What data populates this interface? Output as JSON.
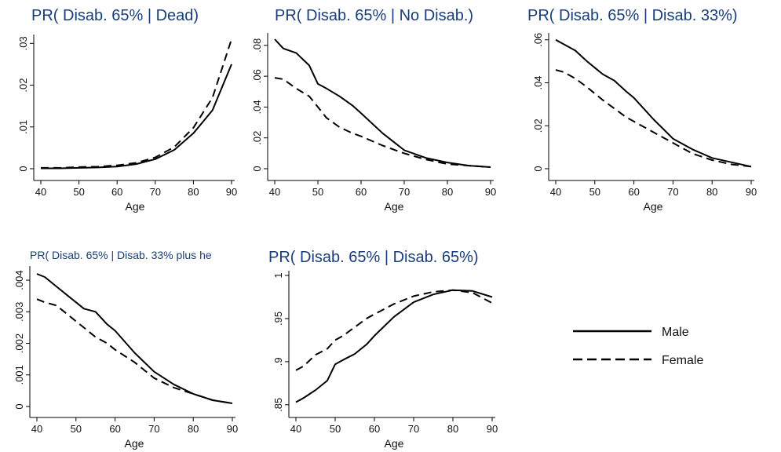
{
  "legend": {
    "entries": [
      {
        "label": "Male",
        "style": "solid"
      },
      {
        "label": "Female",
        "style": "dashed"
      }
    ],
    "placement": "bottom-right"
  },
  "colors": {
    "title": "#1a3d78",
    "series": "#000000"
  },
  "chart_data": [
    {
      "type": "line",
      "title": "PR( Disab. 65% | Dead)",
      "xlabel": "Age",
      "ylabel": "",
      "xlim": [
        40,
        90
      ],
      "ylim": [
        0,
        0.031
      ],
      "xticks": [
        40,
        50,
        60,
        70,
        80,
        90
      ],
      "yticks": [
        0,
        0.01,
        0.02,
        0.03
      ],
      "yticklabels": [
        "0",
        ".01",
        ".02",
        ".03"
      ],
      "series": [
        {
          "name": "Male",
          "x": [
            40,
            45,
            50,
            55,
            60,
            65,
            70,
            75,
            80,
            85,
            90
          ],
          "values": [
            0.0001,
            0.0001,
            0.0002,
            0.0003,
            0.0005,
            0.0011,
            0.0023,
            0.0045,
            0.0085,
            0.014,
            0.025
          ]
        },
        {
          "name": "Female",
          "x": [
            40,
            45,
            50,
            55,
            60,
            65,
            70,
            75,
            80,
            85,
            90
          ],
          "values": [
            0.0002,
            0.0002,
            0.0004,
            0.0005,
            0.0008,
            0.0014,
            0.0027,
            0.0052,
            0.0098,
            0.017,
            0.031
          ]
        }
      ]
    },
    {
      "type": "line",
      "title": "PR( Disab. 65% | No Disab.)",
      "xlabel": "Age",
      "ylabel": "",
      "xlim": [
        40,
        90
      ],
      "ylim": [
        0,
        0.085
      ],
      "xticks": [
        40,
        50,
        60,
        70,
        80,
        90
      ],
      "yticks": [
        0,
        0.02,
        0.04,
        0.06,
        0.08
      ],
      "yticklabels": [
        "0",
        ".02",
        ".04",
        ".06",
        ".08"
      ],
      "series": [
        {
          "name": "Male",
          "x": [
            40,
            42,
            45,
            48,
            50,
            52,
            55,
            58,
            60,
            65,
            70,
            75,
            80,
            85,
            90
          ],
          "values": [
            0.084,
            0.078,
            0.075,
            0.067,
            0.055,
            0.052,
            0.047,
            0.041,
            0.036,
            0.023,
            0.012,
            0.007,
            0.004,
            0.002,
            0.001
          ]
        },
        {
          "name": "Female",
          "x": [
            40,
            42,
            45,
            48,
            50,
            52,
            55,
            58,
            60,
            65,
            70,
            75,
            80,
            85,
            90
          ],
          "values": [
            0.059,
            0.058,
            0.052,
            0.047,
            0.04,
            0.033,
            0.027,
            0.023,
            0.021,
            0.015,
            0.01,
            0.006,
            0.003,
            0.002,
            0.001
          ]
        }
      ]
    },
    {
      "type": "line",
      "title": "PR( Disab. 65% | Disab. 33%)",
      "xlabel": "Age",
      "ylabel": "",
      "xlim": [
        40,
        90
      ],
      "ylim": [
        0,
        0.061
      ],
      "xticks": [
        40,
        50,
        60,
        70,
        80,
        90
      ],
      "yticks": [
        0,
        0.02,
        0.04,
        0.06
      ],
      "yticklabels": [
        "0",
        ".02",
        ".04",
        ".06"
      ],
      "series": [
        {
          "name": "Male",
          "x": [
            40,
            42,
            45,
            48,
            50,
            52,
            55,
            58,
            60,
            65,
            70,
            75,
            80,
            85,
            90
          ],
          "values": [
            0.06,
            0.058,
            0.055,
            0.05,
            0.047,
            0.044,
            0.041,
            0.036,
            0.033,
            0.023,
            0.014,
            0.009,
            0.005,
            0.003,
            0.001
          ]
        },
        {
          "name": "Female",
          "x": [
            40,
            42,
            45,
            48,
            50,
            52,
            55,
            58,
            60,
            65,
            70,
            75,
            80,
            85,
            90
          ],
          "values": [
            0.046,
            0.045,
            0.042,
            0.038,
            0.035,
            0.032,
            0.028,
            0.024,
            0.022,
            0.017,
            0.012,
            0.007,
            0.004,
            0.002,
            0.001
          ]
        }
      ]
    },
    {
      "type": "line",
      "title": "PR( Disab. 65% | Disab. 33% plus he",
      "xlabel": "Age",
      "ylabel": "",
      "xlim": [
        40,
        90
      ],
      "ylim": [
        0,
        0.0043
      ],
      "xticks": [
        40,
        50,
        60,
        70,
        80,
        90
      ],
      "yticks": [
        0,
        0.001,
        0.002,
        0.003,
        0.004
      ],
      "yticklabels": [
        "0",
        ".001",
        ".002",
        ".003",
        ".004"
      ],
      "series": [
        {
          "name": "Male",
          "x": [
            40,
            42,
            45,
            48,
            50,
            52,
            55,
            58,
            60,
            65,
            70,
            75,
            80,
            85,
            90
          ],
          "values": [
            0.0042,
            0.0041,
            0.0038,
            0.0035,
            0.0033,
            0.0031,
            0.003,
            0.0026,
            0.0024,
            0.0017,
            0.0011,
            0.0007,
            0.0004,
            0.0002,
            0.0001
          ]
        },
        {
          "name": "Female",
          "x": [
            40,
            42,
            45,
            48,
            50,
            52,
            55,
            58,
            60,
            65,
            70,
            75,
            80,
            85,
            90
          ],
          "values": [
            0.0034,
            0.0033,
            0.0032,
            0.0029,
            0.0027,
            0.0025,
            0.0022,
            0.002,
            0.0018,
            0.0014,
            0.0009,
            0.0006,
            0.0004,
            0.0002,
            0.0001
          ]
        }
      ]
    },
    {
      "type": "line",
      "title": "PR( Disab. 65% | Disab. 65%)",
      "xlabel": "Age",
      "ylabel": "",
      "xlim": [
        40,
        90
      ],
      "ylim": [
        0.848,
        1.0
      ],
      "xticks": [
        40,
        50,
        60,
        70,
        80,
        90
      ],
      "yticks": [
        0.85,
        0.9,
        0.95,
        1
      ],
      "yticklabels": [
        ".85",
        ".9",
        ".95",
        "1"
      ],
      "series": [
        {
          "name": "Male",
          "x": [
            40,
            42,
            45,
            48,
            50,
            52,
            55,
            58,
            60,
            65,
            70,
            75,
            80,
            85,
            90
          ],
          "values": [
            0.853,
            0.858,
            0.867,
            0.878,
            0.897,
            0.902,
            0.909,
            0.92,
            0.93,
            0.952,
            0.969,
            0.978,
            0.983,
            0.982,
            0.975
          ]
        },
        {
          "name": "Female",
          "x": [
            40,
            42,
            45,
            48,
            50,
            52,
            55,
            58,
            60,
            65,
            70,
            75,
            80,
            85,
            90
          ],
          "values": [
            0.89,
            0.895,
            0.908,
            0.915,
            0.925,
            0.93,
            0.94,
            0.95,
            0.955,
            0.967,
            0.976,
            0.981,
            0.983,
            0.98,
            0.968
          ]
        }
      ]
    }
  ]
}
